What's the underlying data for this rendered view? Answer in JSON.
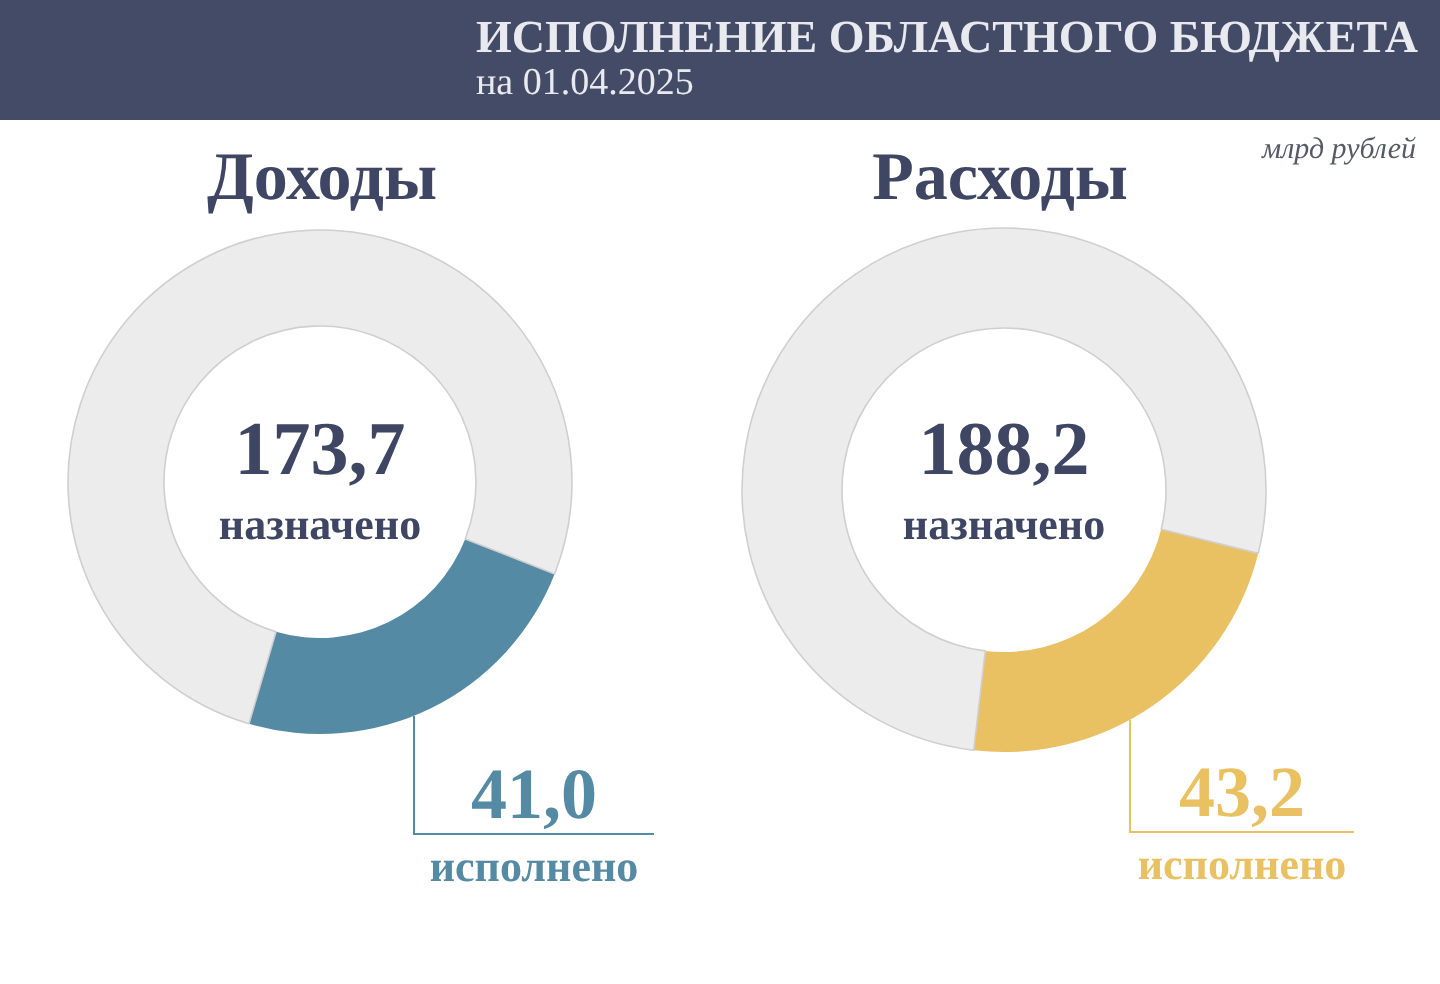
{
  "chart_data": [
    {
      "type": "other",
      "title": "ИСПОЛНЕНИЕ ОБЛАСТНОГО БЮДЖЕТА",
      "subtitle": "на 01.04.2025",
      "annotations": [
        "млрд рублей"
      ]
    },
    {
      "type": "donut",
      "title": "Доходы",
      "categories": [
        "исполнено",
        null
      ],
      "values": [
        41.0,
        132.7
      ],
      "colors": [
        "#548aa3",
        "#ececec"
      ],
      "value_labels": [
        "41,0",
        null
      ],
      "annotations": [
        "173,7",
        "назначено"
      ]
    },
    {
      "type": "donut",
      "title": "Расходы",
      "categories": [
        "исполнено",
        null
      ],
      "values": [
        43.2,
        145.0
      ],
      "colors": [
        "#e9c163",
        "#ececec"
      ],
      "value_labels": [
        "43,2",
        null
      ],
      "annotations": [
        "188,2",
        "назначено"
      ]
    }
  ]
}
